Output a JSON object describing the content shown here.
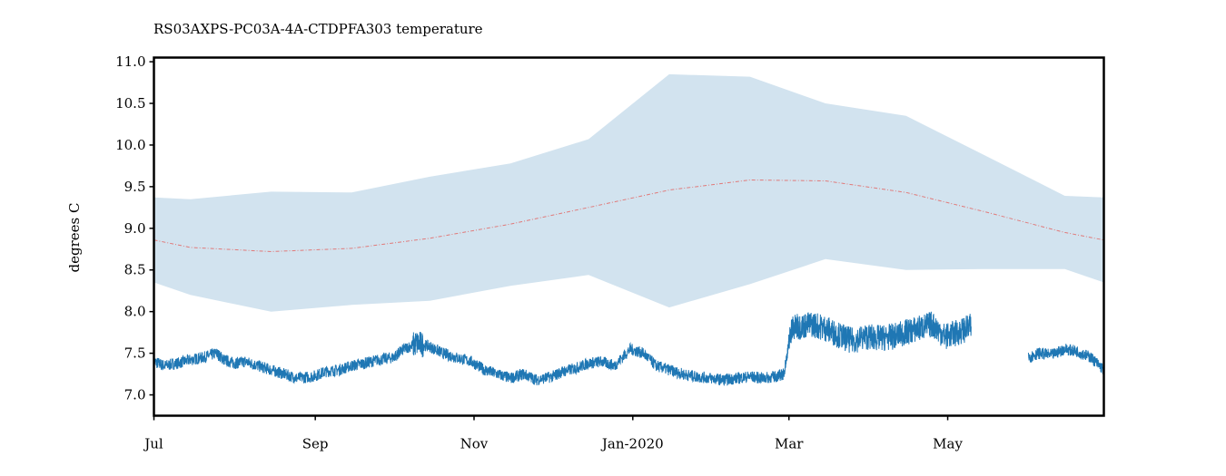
{
  "chart_data": {
    "type": "line",
    "title": "RS03AXPS-PC03A-4A-CTDPFA303 temperature",
    "xlabel": "",
    "ylabel": "degrees C",
    "xlim": [
      "2019-07-01",
      "2020-06-30"
    ],
    "ylim": [
      6.75,
      11.05
    ],
    "x_ticks": [
      {
        "date": "2019-07-01",
        "label": "Jul"
      },
      {
        "date": "2019-09-01",
        "label": "Sep"
      },
      {
        "date": "2019-11-01",
        "label": "Nov"
      },
      {
        "date": "2020-01-01",
        "label": "Jan-2020"
      },
      {
        "date": "2020-03-01",
        "label": "Mar"
      },
      {
        "date": "2020-05-01",
        "label": "May"
      }
    ],
    "y_ticks": [
      7.0,
      7.5,
      8.0,
      8.5,
      9.0,
      9.5,
      10.0,
      10.5,
      11.0
    ],
    "y_tick_labels": [
      "7.0",
      "7.5",
      "8.0",
      "8.5",
      "9.0",
      "9.5",
      "10.0",
      "10.5",
      "11.0"
    ],
    "grid": false,
    "colors": {
      "data": "#1f77b4",
      "band": "#d2e3ef",
      "mean": "#e07a7a",
      "frame": "#000000"
    },
    "envelope": {
      "x": [
        "2019-07-01",
        "2019-07-15",
        "2019-08-15",
        "2019-09-15",
        "2019-10-15",
        "2019-11-15",
        "2019-12-15",
        "2020-01-15",
        "2020-02-15",
        "2020-03-15",
        "2020-04-15",
        "2020-05-15",
        "2020-06-15",
        "2020-06-30"
      ],
      "upper": [
        9.37,
        9.35,
        9.44,
        9.43,
        9.62,
        9.78,
        10.07,
        10.85,
        10.82,
        10.5,
        10.35,
        9.88,
        9.39,
        9.37
      ],
      "mean": [
        8.86,
        8.77,
        8.72,
        8.76,
        8.88,
        9.05,
        9.25,
        9.46,
        9.58,
        9.57,
        9.43,
        9.2,
        8.95,
        8.86
      ],
      "lower": [
        8.35,
        8.2,
        8.0,
        8.08,
        8.13,
        8.31,
        8.44,
        8.05,
        8.33,
        8.63,
        8.5,
        8.51,
        8.51,
        8.35
      ]
    },
    "series": [
      {
        "x": [
          "2019-07-01",
          "2019-07-05",
          "2019-07-10",
          "2019-07-15",
          "2019-07-20",
          "2019-07-25",
          "2019-07-28",
          "2019-08-01",
          "2019-08-05",
          "2019-08-10",
          "2019-08-15",
          "2019-08-20",
          "2019-08-25",
          "2019-08-31",
          "2019-09-05",
          "2019-09-10",
          "2019-09-15",
          "2019-09-20",
          "2019-09-25",
          "2019-10-01",
          "2019-10-05",
          "2019-10-10",
          "2019-10-15",
          "2019-10-20",
          "2019-10-25",
          "2019-10-31",
          "2019-11-05",
          "2019-11-10",
          "2019-11-15",
          "2019-11-20",
          "2019-11-25",
          "2019-12-01",
          "2019-12-05",
          "2019-12-10",
          "2019-12-15",
          "2019-12-20",
          "2019-12-25",
          "2019-12-31",
          "2020-01-05",
          "2020-01-10",
          "2020-01-15",
          "2020-01-20",
          "2020-01-25",
          "2020-01-31",
          "2020-02-05",
          "2020-02-10",
          "2020-02-15",
          "2020-02-20",
          "2020-02-25",
          "2020-02-28",
          "2020-03-02",
          "2020-03-05",
          "2020-03-10",
          "2020-03-15",
          "2020-03-20",
          "2020-03-25",
          "2020-03-31",
          "2020-04-05",
          "2020-04-10",
          "2020-04-15",
          "2020-04-20",
          "2020-04-25",
          "2020-04-30",
          "2020-05-05",
          "2020-05-10"
        ],
        "values": [
          7.4,
          7.35,
          7.38,
          7.42,
          7.45,
          7.5,
          7.42,
          7.38,
          7.4,
          7.35,
          7.3,
          7.25,
          7.2,
          7.22,
          7.28,
          7.3,
          7.35,
          7.38,
          7.42,
          7.45,
          7.55,
          7.62,
          7.58,
          7.5,
          7.45,
          7.4,
          7.3,
          7.25,
          7.2,
          7.25,
          7.18,
          7.22,
          7.28,
          7.32,
          7.38,
          7.4,
          7.35,
          7.55,
          7.5,
          7.35,
          7.3,
          7.25,
          7.22,
          7.2,
          7.18,
          7.2,
          7.22,
          7.2,
          7.22,
          7.25,
          7.8,
          7.82,
          7.85,
          7.8,
          7.72,
          7.65,
          7.7,
          7.68,
          7.7,
          7.75,
          7.8,
          7.85,
          7.7,
          7.75,
          7.82
        ]
      },
      {
        "x": [
          "2020-06-01",
          "2020-06-05",
          "2020-06-10",
          "2020-06-15",
          "2020-06-20",
          "2020-06-25",
          "2020-06-30"
        ],
        "values": [
          7.45,
          7.5,
          7.48,
          7.55,
          7.52,
          7.45,
          7.3
        ]
      }
    ]
  }
}
